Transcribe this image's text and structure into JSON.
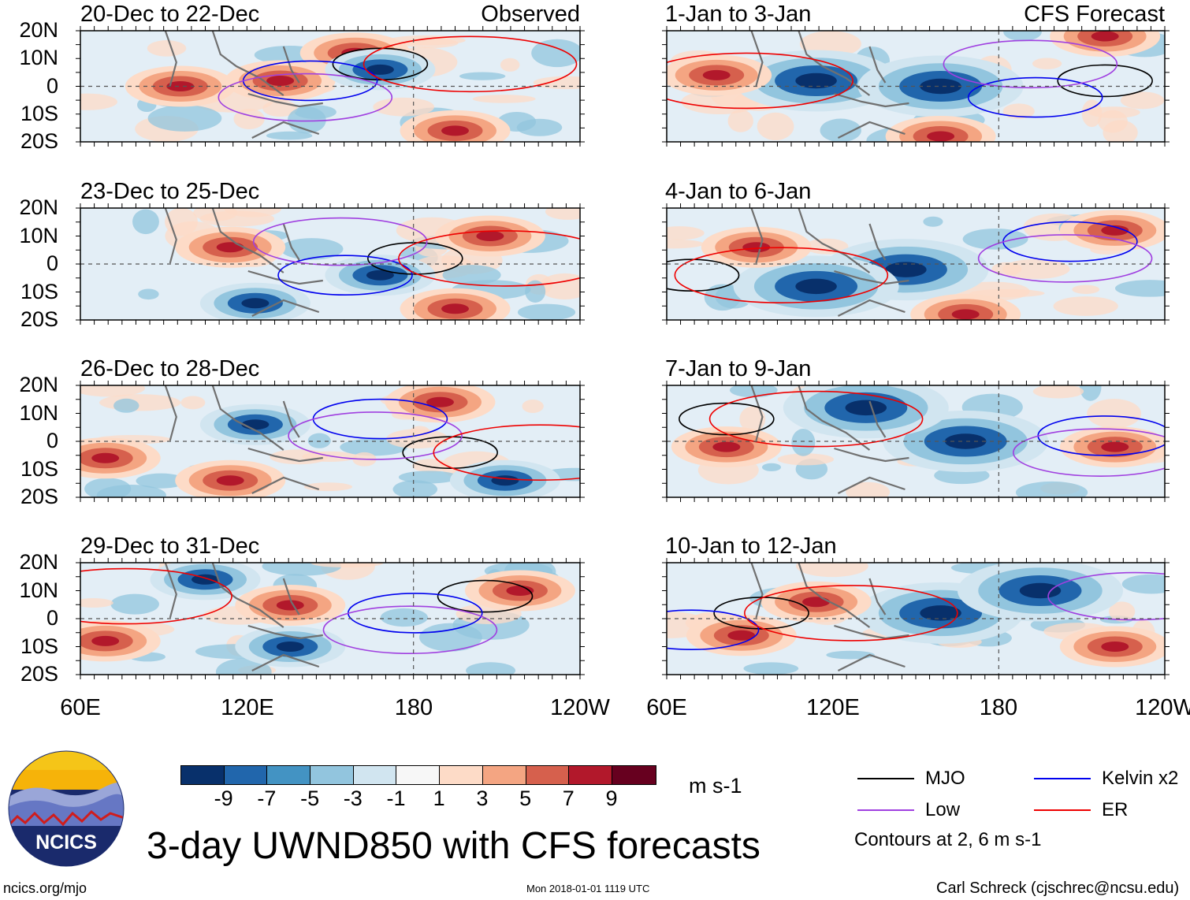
{
  "title": "3-day UWND850 with CFS forecasts",
  "observed_tag": "Observed",
  "forecast_tag": "CFS Forecast",
  "y_axis_labels": [
    "20N",
    "10N",
    "0",
    "10S",
    "20S"
  ],
  "x_axis_labels": [
    "60E",
    "120E",
    "180",
    "120W"
  ],
  "panels_observed": [
    {
      "dates": "20-Dec to 22-Dec"
    },
    {
      "dates": "23-Dec to 25-Dec"
    },
    {
      "dates": "26-Dec to 28-Dec"
    },
    {
      "dates": "29-Dec to 31-Dec"
    }
  ],
  "panels_forecast": [
    {
      "dates": "1-Jan to 3-Jan"
    },
    {
      "dates": "4-Jan to 6-Jan"
    },
    {
      "dates": "7-Jan to 9-Jan"
    },
    {
      "dates": "10-Jan to 12-Jan"
    }
  ],
  "colorbar": {
    "labels": [
      "-9",
      "-7",
      "-5",
      "-3",
      "-1",
      "1",
      "3",
      "5",
      "7",
      "9"
    ],
    "colors": [
      "#08306b",
      "#2166ac",
      "#4393c3",
      "#92c5de",
      "#d1e5f0",
      "#f7f7f7",
      "#fddbc7",
      "#f4a582",
      "#d6604d",
      "#b2182b",
      "#67001f"
    ],
    "units": "m s-1"
  },
  "legend": {
    "items": [
      {
        "label": "MJO",
        "color": "#000000"
      },
      {
        "label": "Kelvin x2",
        "color": "#0000ee"
      },
      {
        "label": "Low",
        "color": "#a040e0"
      },
      {
        "label": "ER",
        "color": "#ee0000"
      }
    ],
    "contours_note": "Contours at 2, 6 m s-1"
  },
  "logo": {
    "text": "NCICS"
  },
  "footer": {
    "website": "ncics.org/mjo",
    "timestamp": "Mon 2018-01-01 1119 UTC",
    "author": "Carl Schreck (cjschrec@ncsu.edu)"
  },
  "field_colors": {
    "pos_strong": "#b2182b",
    "pos_mid": "#d6604d",
    "pos_light": "#f4a582",
    "pos_faint": "#fddbc7",
    "neg_strong": "#08306b",
    "neg_mid": "#2166ac",
    "neg_light": "#92c5de",
    "neg_faint": "#d1e5f0",
    "land": "#707070"
  }
}
